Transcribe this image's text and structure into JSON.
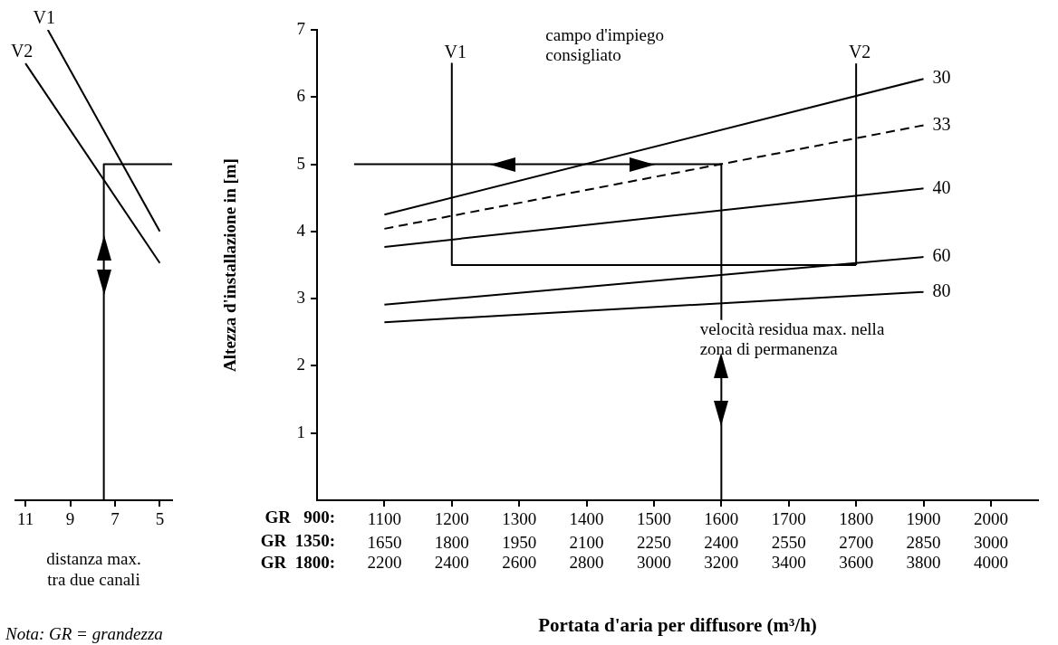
{
  "chart_data": [
    {
      "type": "line",
      "xlabel": "distanza max.\ntra due canali",
      "xlim": [
        11.45,
        4.45
      ],
      "xticks": [
        11,
        9,
        7,
        5
      ],
      "ylim": [
        0,
        7
      ],
      "tick_labels": "x",
      "legend": false,
      "marker": "none",
      "series": [
        {
          "name": "V1",
          "color": "#000000",
          "x": [
            10,
            5
          ],
          "values": [
            7.0,
            4.0
          ]
        },
        {
          "name": "V2",
          "color": "#000000",
          "x": [
            11,
            5
          ],
          "values": [
            6.5,
            3.53
          ]
        },
        {
          "color": "#000000",
          "x": [
            7.5,
            7.5,
            4.45
          ],
          "values": [
            0,
            5,
            5
          ]
        }
      ],
      "annotations": [
        "Nota: GR = grandezza"
      ]
    },
    {
      "type": "line",
      "xlabel": "Portata d'aria per diffusore (m³/h)",
      "ylabel": "Altezza d'installazione in [m]",
      "xlim": [
        1000,
        2070
      ],
      "xticks": [
        1100,
        1200,
        1300,
        1400,
        1500,
        1600,
        1700,
        1800,
        1900,
        2000
      ],
      "x2lim": [
        1500,
        3105
      ],
      "x2ticks": [
        1650,
        1800,
        1950,
        2100,
        2250,
        2400,
        2550,
        2700,
        2850,
        3000
      ],
      "ylim": [
        0,
        7
      ],
      "yticks": [
        1,
        2,
        3,
        4,
        5,
        6,
        7
      ],
      "legend": false,
      "marker": "none",
      "series": [
        {
          "name": "30",
          "color": "#000000",
          "x": [
            1100,
            1900
          ],
          "values": [
            4.25,
            6.27
          ]
        },
        {
          "name": "33",
          "color": "#000000",
          "x": [
            1100,
            1900
          ],
          "values": [
            4.04,
            5.58
          ],
          "line_style": "dashed"
        },
        {
          "name": "40",
          "color": "#000000",
          "x": [
            1100,
            1900
          ],
          "values": [
            3.77,
            4.64
          ]
        },
        {
          "name": "60",
          "color": "#000000",
          "x": [
            1100,
            1900
          ],
          "values": [
            2.91,
            3.62
          ]
        },
        {
          "name": "80",
          "color": "#000000",
          "x": [
            1100,
            1900
          ],
          "values": [
            2.65,
            3.1
          ]
        },
        {
          "color": "#000000",
          "x": [
            1055,
            1600,
            1600
          ],
          "values": [
            5,
            5,
            0
          ]
        },
        {
          "name": "V1",
          "color": "#000000",
          "x": [
            1200,
            1200
          ],
          "values": [
            6.5,
            3.5
          ]
        },
        {
          "color": "#000000",
          "x": [
            1200,
            1800
          ],
          "values": [
            3.5,
            3.5
          ]
        },
        {
          "name": "V2",
          "color": "#000000",
          "x": [
            1800,
            1800
          ],
          "values": [
            3.5,
            6.5
          ]
        }
      ],
      "annotations": [
        "GR   900:",
        "GR  1350:",
        "GR  1800:",
        "campo d'impiego consigliato",
        "velocità residua max. nella zona di permanenza",
        "2200",
        "2400",
        "2600",
        "2800",
        "3000",
        "3200",
        "3400",
        "3600",
        "3800",
        "4000"
      ]
    }
  ]
}
